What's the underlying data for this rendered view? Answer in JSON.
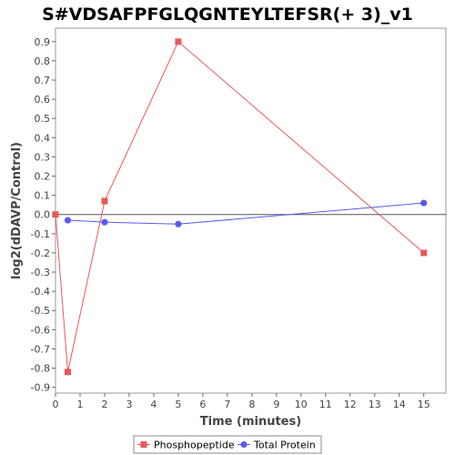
{
  "chart_data": {
    "type": "line",
    "title": "S#VDSAFPFGLQGNTEYLTEFSR(+ 3)_v1",
    "xlabel": "Time (minutes)",
    "ylabel": "log2(dDAVP/Control)",
    "xlim": [
      0,
      15.9
    ],
    "ylim": [
      -0.93,
      0.97
    ],
    "x_ticks": [
      0,
      1,
      2,
      3,
      4,
      5,
      6,
      7,
      8,
      9,
      10,
      11,
      12,
      13,
      14,
      15
    ],
    "y_ticks": [
      -0.9,
      -0.8,
      -0.7,
      -0.6,
      -0.5,
      -0.4,
      -0.3,
      -0.2,
      -0.1,
      0.0,
      0.1,
      0.2,
      0.3,
      0.4,
      0.5,
      0.6,
      0.7,
      0.8,
      0.9
    ],
    "y_tick_labels": [
      "-0.9",
      "-0.8",
      "-0.7",
      "-0.6",
      "-0.5",
      "-0.4",
      "-0.3",
      "-0.2",
      "-0.1",
      "0.0",
      "0.1",
      "0.2",
      "0.3",
      "0.4",
      "0.5",
      "0.6",
      "0.7",
      "0.8",
      "0.9"
    ],
    "zero_line": true,
    "grid": false,
    "legend_position": "bottom-center",
    "series": [
      {
        "name": "Phosphopeptide",
        "color": "#e8585a",
        "marker": "square",
        "x": [
          0,
          0.5,
          2,
          5,
          15
        ],
        "y": [
          0.0,
          -0.82,
          0.07,
          0.9,
          -0.2
        ]
      },
      {
        "name": "Total Protein",
        "color": "#5a5af0",
        "marker": "circle",
        "x": [
          0.5,
          2,
          5,
          15
        ],
        "y": [
          -0.03,
          -0.04,
          -0.05,
          0.06
        ]
      }
    ]
  }
}
